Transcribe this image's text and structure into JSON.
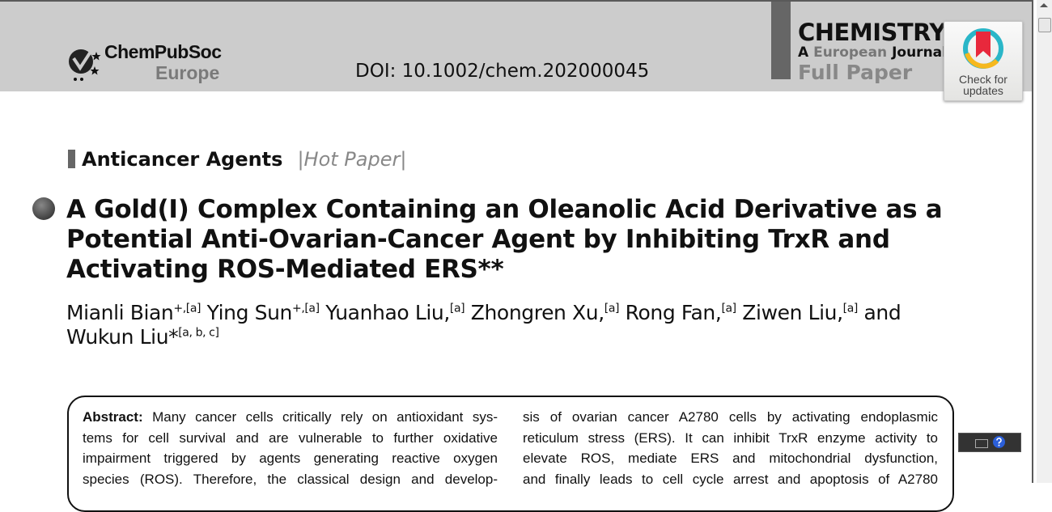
{
  "header": {
    "publisher_logo": {
      "line1": "ChemPubSoc",
      "line2": "Europe"
    },
    "doi": "DOI: 10.1002/chem.202000045",
    "journal": {
      "name": "CHEMISTRY",
      "subtitle_a": "A",
      "subtitle_eu": "European",
      "subtitle_j": "Journal",
      "type": "Full Paper"
    },
    "check_updates": {
      "line1": "Check for",
      "line2": "updates"
    }
  },
  "article": {
    "section": "Anticancer Agents",
    "tag": "|Hot Paper|",
    "title": "A Gold(I) Complex Containing an Oleanolic Acid Derivative as a Potential Anti-Ovarian-Cancer Agent by Inhibiting TrxR and Activating ROS-Mediated ERS**",
    "authors": [
      {
        "name": "Mianli Bian",
        "sup": "+,[a]"
      },
      {
        "name": " Ying Sun",
        "sup": "+,[a]"
      },
      {
        "name": " Yuanhao Liu,",
        "sup": "[a]"
      },
      {
        "name": " Zhongren Xu,",
        "sup": "[a]"
      },
      {
        "name": " Rong Fan,",
        "sup": "[a]"
      },
      {
        "name": " Ziwen Liu,",
        "sup": "[a]"
      },
      {
        "name": " and Wukun Liu*",
        "sup": "[a, b, c]"
      }
    ],
    "abstract_label": "Abstract:",
    "abstract_col1": [
      " Many cancer cells critically rely on antioxidant sys-",
      "tems for cell survival and are vulnerable to further oxidative",
      "impairment triggered by agents generating reactive oxygen",
      "species (ROS). Therefore, the classical design and develop-"
    ],
    "abstract_col2": [
      "sis of ovarian cancer A2780 cells by activating endoplasmic",
      "reticulum stress (ERS). It can inhibit TrxR enzyme activity to",
      "elevate ROS, mediate ERS and mitochondrial dysfunction,",
      "and finally leads to cell cycle arrest and apoptosis of A2780"
    ]
  },
  "colors": {
    "band": "#cccccc",
    "accent_bar": "#666666",
    "check_red": "#e8283c",
    "check_teal": "#2ab6c8",
    "check_yellow": "#f6b81e"
  }
}
